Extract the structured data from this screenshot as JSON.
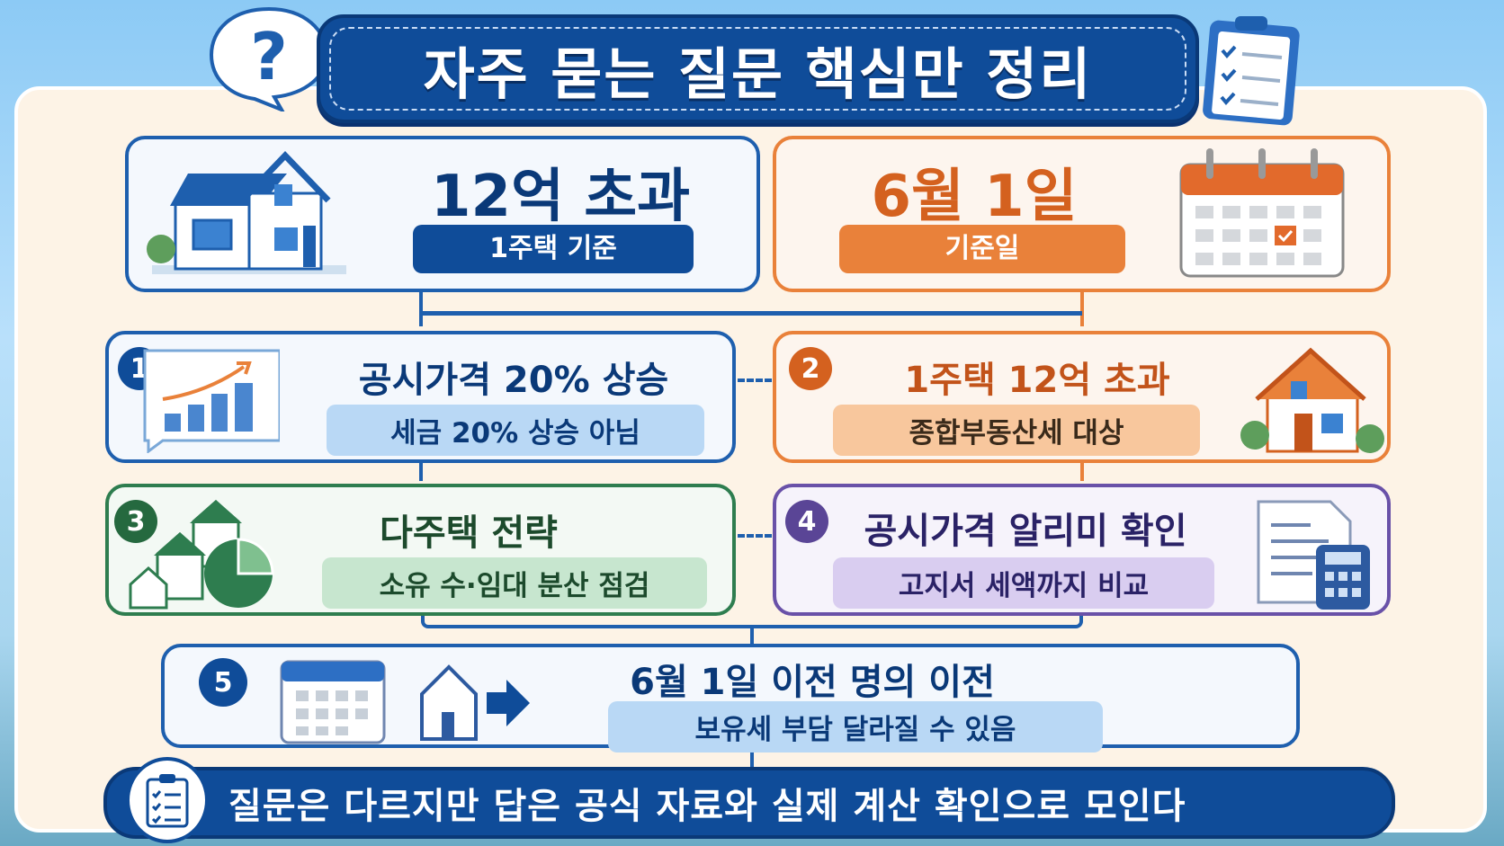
{
  "title": "자주 묻는 질문 핵심만 정리",
  "top_cards": [
    {
      "headline": "12억 초과",
      "label": "1주택 기준",
      "color": "#0f4c99",
      "icon": "house-icon"
    },
    {
      "headline": "6월 1일",
      "label": "기준일",
      "color": "#e9813a",
      "icon": "calendar-icon"
    }
  ],
  "items": [
    {
      "number": "1",
      "title": "공시가격 20% 상승",
      "subtitle": "세금 20% 상승 아님",
      "color": "#1e5fae",
      "icon": "bar-chart-icon"
    },
    {
      "number": "2",
      "title": "1주택 12억 초과",
      "subtitle": "종합부동산세 대상",
      "color": "#e9813a",
      "icon": "house-icon"
    },
    {
      "number": "3",
      "title": "다주택 전략",
      "subtitle": "소유 수·임대 분산 점검",
      "color": "#2e7d4f",
      "icon": "houses-pie-chart-icon"
    },
    {
      "number": "4",
      "title": "공시가격 알리미 확인",
      "subtitle": "고지서 세액까지 비교",
      "color": "#6951a8",
      "icon": "document-calculator-icon"
    },
    {
      "number": "5",
      "title": "6월 1일 이전 명의 이전",
      "subtitle": "보유세 부담 달라질 수 있음",
      "color": "#0f4c99",
      "icon": "calendar-house-arrow-icon"
    }
  ],
  "footer": "질문은 다르지만 답은 공식 자료와 실제 계산 확인으로 모인다"
}
